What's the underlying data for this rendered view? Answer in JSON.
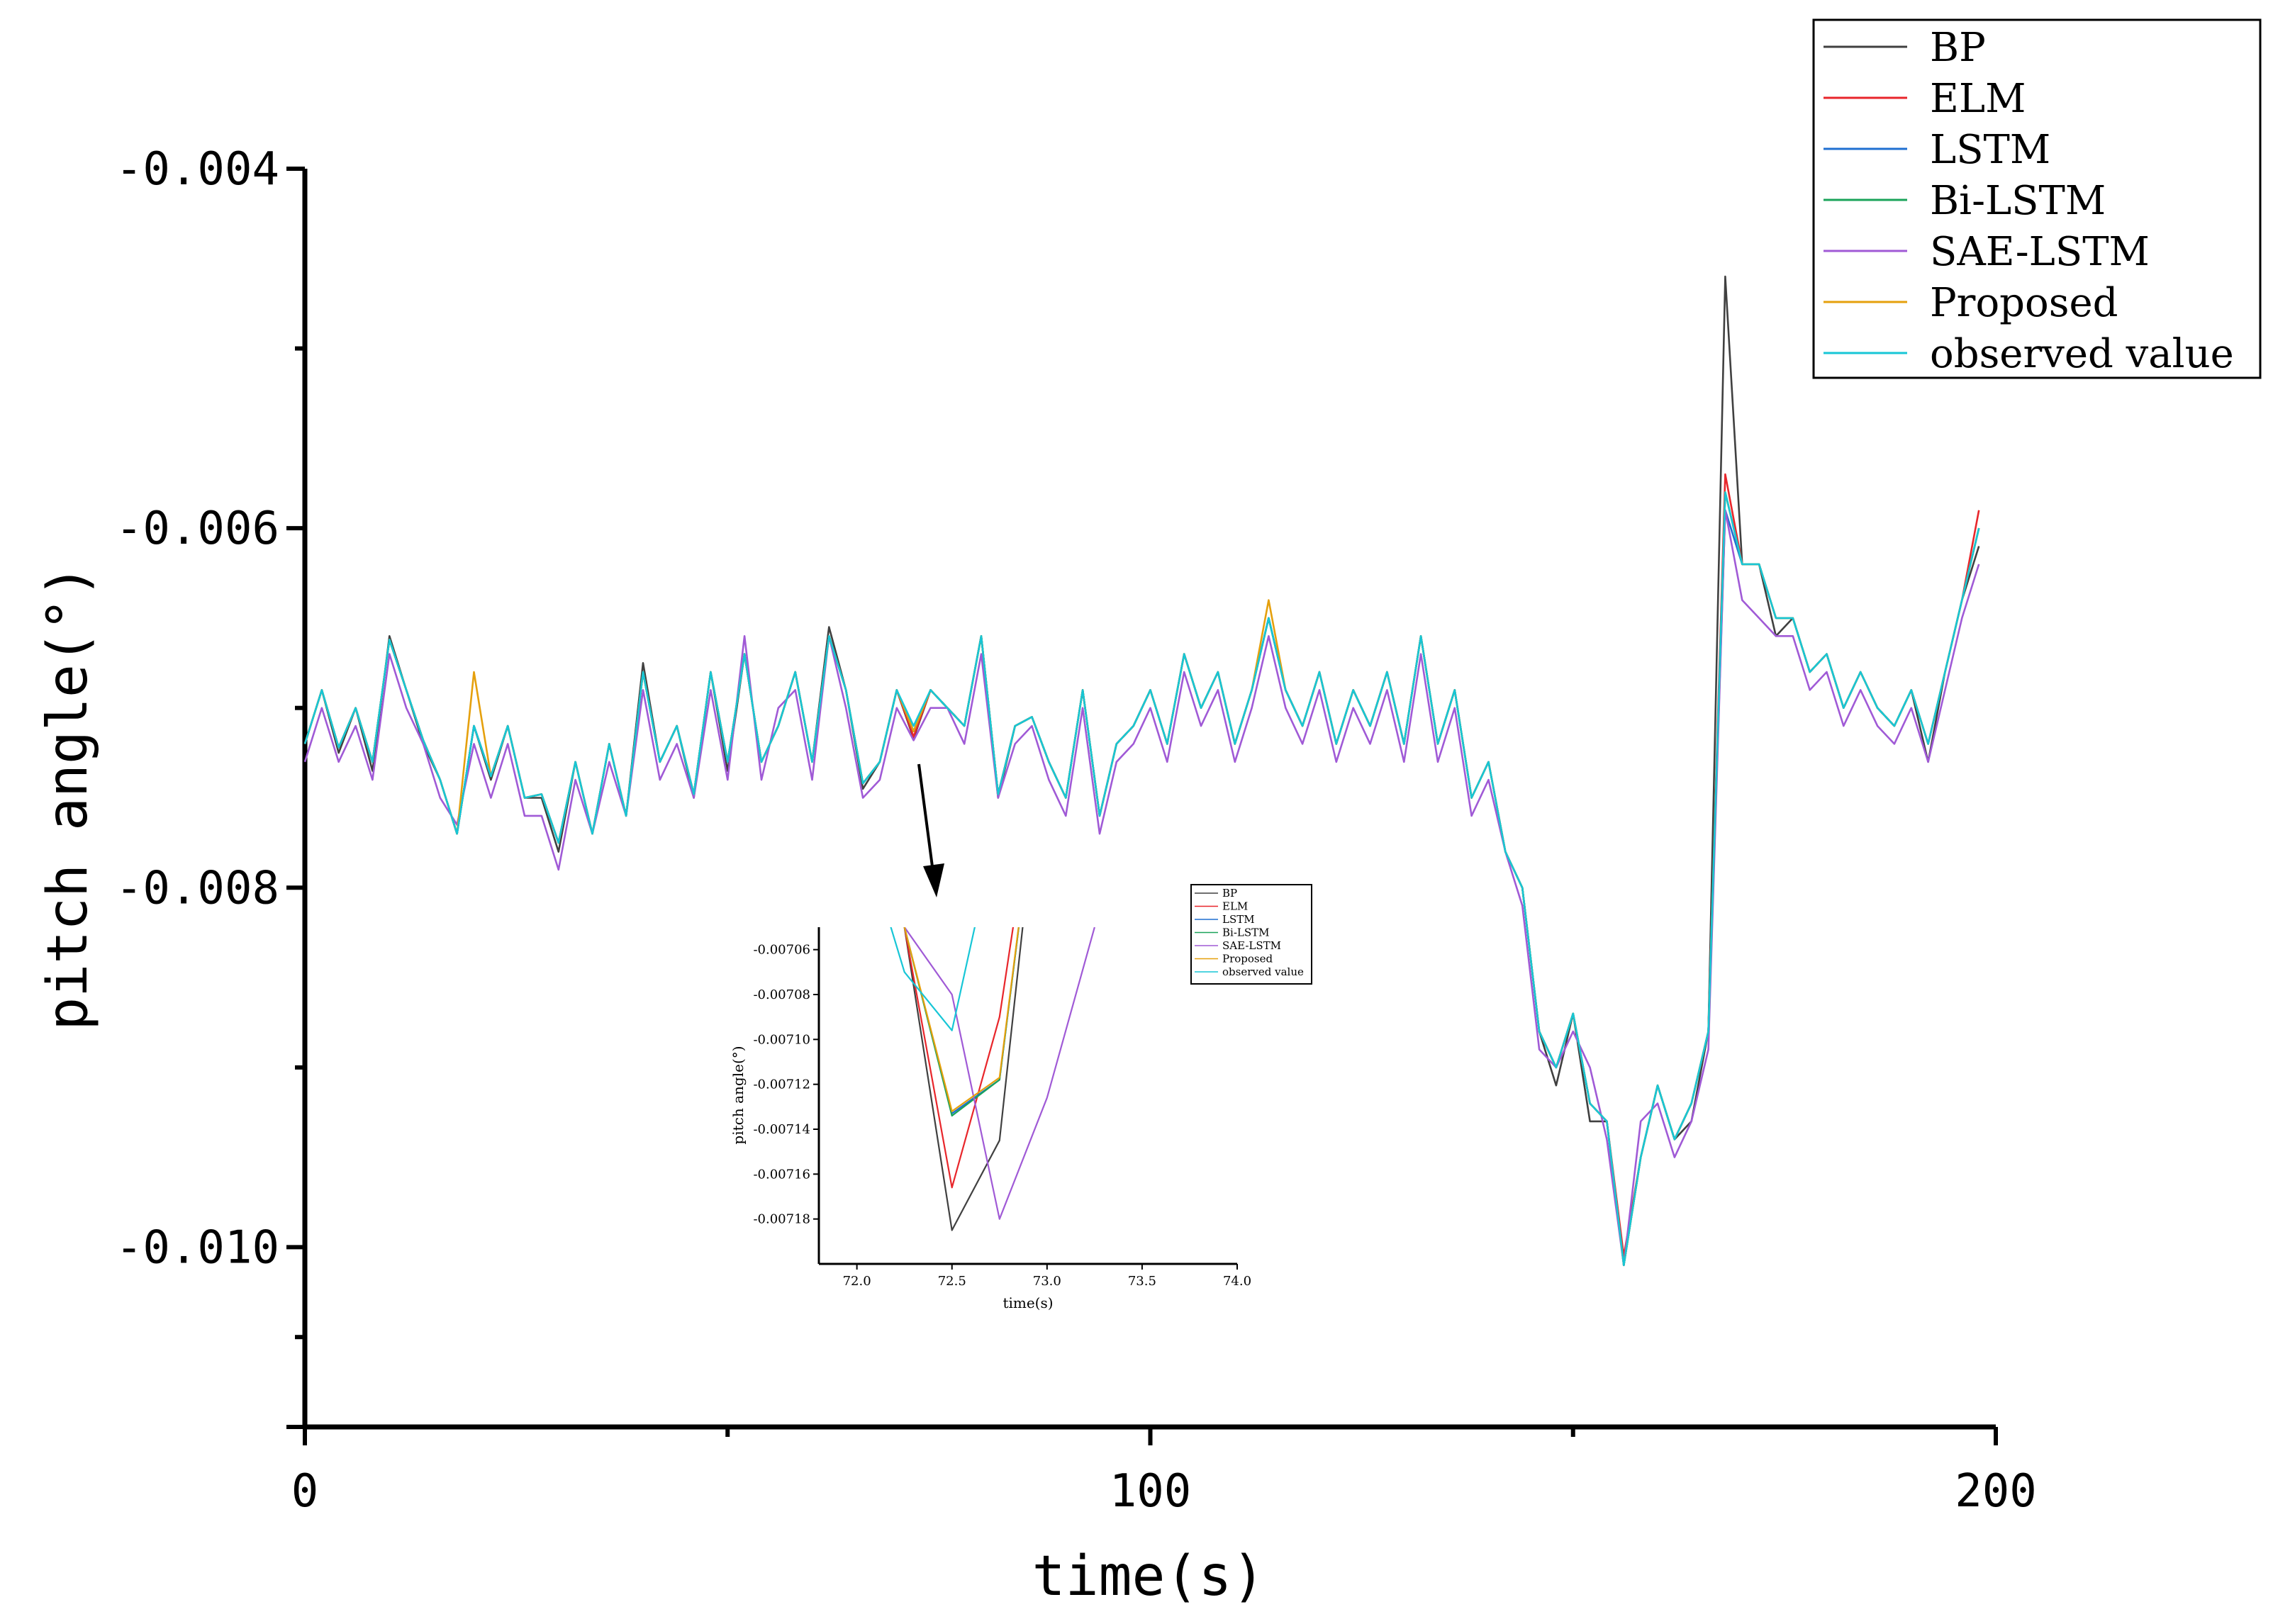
{
  "chart_data": {
    "type": "line",
    "xlabel": "time(s)",
    "ylabel": "pitch angle(°)",
    "xlim": [
      0,
      200
    ],
    "ylim": [
      -0.011,
      -0.004
    ],
    "x_ticks": [
      0,
      100,
      200
    ],
    "x_tick_labels": [
      "0",
      "100",
      "200"
    ],
    "y_ticks": [
      -0.004,
      -0.006,
      -0.008,
      -0.01
    ],
    "y_tick_labels": [
      "-0.004",
      "-0.006",
      "-0.008",
      "-0.010"
    ],
    "legend_position": "top-right",
    "grid": false,
    "x": [
      0,
      2,
      4,
      6,
      8,
      10,
      12,
      14,
      16,
      18,
      20,
      22,
      24,
      26,
      28,
      30,
      32,
      34,
      36,
      38,
      40,
      42,
      44,
      46,
      48,
      50,
      52,
      54,
      56,
      58,
      60,
      62,
      64,
      66,
      68,
      70,
      72,
      74,
      76,
      78,
      80,
      82,
      84,
      86,
      88,
      90,
      92,
      94,
      96,
      98,
      100,
      102,
      104,
      106,
      108,
      110,
      112,
      114,
      116,
      118,
      120,
      122,
      124,
      126,
      128,
      130,
      132,
      134,
      136,
      138,
      140,
      142,
      144,
      146,
      148,
      150,
      152,
      154,
      156,
      158,
      160,
      162,
      164,
      166,
      168,
      170,
      172,
      174,
      176,
      178,
      180,
      182,
      184,
      186,
      188,
      190,
      192,
      194,
      196,
      198
    ],
    "series": [
      {
        "name": "BP",
        "color": "#404040",
        "values": [
          -0.0072,
          -0.0069,
          -0.00725,
          -0.007,
          -0.00735,
          -0.0066,
          -0.0069,
          -0.0072,
          -0.0074,
          -0.0077,
          -0.0071,
          -0.0074,
          -0.0071,
          -0.0075,
          -0.0075,
          -0.0078,
          -0.0073,
          -0.0077,
          -0.0072,
          -0.0076,
          -0.00675,
          -0.0073,
          -0.0071,
          -0.0075,
          -0.0068,
          -0.00735,
          -0.0067,
          -0.0073,
          -0.0071,
          -0.0068,
          -0.0073,
          -0.00655,
          -0.0069,
          -0.00745,
          -0.0073,
          -0.0069,
          -0.00717,
          -0.0069,
          -0.007,
          -0.0071,
          -0.0066,
          -0.0075,
          -0.0071,
          -0.00705,
          -0.0073,
          -0.0075,
          -0.0069,
          -0.0076,
          -0.0072,
          -0.0071,
          -0.0069,
          -0.0072,
          -0.0067,
          -0.007,
          -0.0068,
          -0.0072,
          -0.0069,
          -0.0065,
          -0.0069,
          -0.0071,
          -0.0068,
          -0.0072,
          -0.0069,
          -0.0071,
          -0.0068,
          -0.0072,
          -0.0066,
          -0.0072,
          -0.0069,
          -0.0075,
          -0.0073,
          -0.0078,
          -0.008,
          -0.0088,
          -0.0091,
          -0.0087,
          -0.0093,
          -0.0093,
          -0.0101,
          -0.0095,
          -0.0091,
          -0.0094,
          -0.0093,
          -0.0088,
          -0.0046,
          -0.0062,
          -0.0062,
          -0.0066,
          -0.0065,
          -0.0068,
          -0.0067,
          -0.007,
          -0.0068,
          -0.007,
          -0.0071,
          -0.0069,
          -0.0073,
          -0.0068,
          -0.0064,
          -0.0061
        ]
      },
      {
        "name": "ELM",
        "color": "#e8262b",
        "values": [
          -0.0072,
          -0.0069,
          -0.00722,
          -0.007,
          -0.0073,
          -0.00662,
          -0.0069,
          -0.00718,
          -0.0074,
          -0.0077,
          -0.0071,
          -0.00738,
          -0.0071,
          -0.0075,
          -0.00748,
          -0.00775,
          -0.0073,
          -0.0077,
          -0.0072,
          -0.0076,
          -0.0068,
          -0.0073,
          -0.0071,
          -0.00748,
          -0.0068,
          -0.0073,
          -0.0067,
          -0.0073,
          -0.0071,
          -0.0068,
          -0.0073,
          -0.0066,
          -0.0069,
          -0.00742,
          -0.0073,
          -0.0069,
          -0.00716,
          -0.0069,
          -0.007,
          -0.0071,
          -0.0066,
          -0.00748,
          -0.0071,
          -0.00705,
          -0.0073,
          -0.0075,
          -0.0069,
          -0.0076,
          -0.0072,
          -0.0071,
          -0.0069,
          -0.0072,
          -0.0067,
          -0.007,
          -0.0068,
          -0.0072,
          -0.0069,
          -0.0065,
          -0.0069,
          -0.0071,
          -0.0068,
          -0.0072,
          -0.0069,
          -0.0071,
          -0.0068,
          -0.0072,
          -0.0066,
          -0.0072,
          -0.0069,
          -0.0075,
          -0.0073,
          -0.0078,
          -0.008,
          -0.0088,
          -0.009,
          -0.0087,
          -0.0092,
          -0.0093,
          -0.01005,
          -0.0095,
          -0.0091,
          -0.0094,
          -0.0092,
          -0.0088,
          -0.0057,
          -0.0062,
          -0.0062,
          -0.0065,
          -0.0065,
          -0.0068,
          -0.0067,
          -0.007,
          -0.0068,
          -0.007,
          -0.0071,
          -0.0069,
          -0.0072,
          -0.0068,
          -0.0064,
          -0.0059
        ]
      },
      {
        "name": "LSTM",
        "color": "#1f6fd1",
        "values": [
          -0.0072,
          -0.0069,
          -0.00722,
          -0.007,
          -0.0073,
          -0.00662,
          -0.0069,
          -0.00718,
          -0.0074,
          -0.0077,
          -0.0071,
          -0.00738,
          -0.0071,
          -0.0075,
          -0.00748,
          -0.00775,
          -0.0073,
          -0.0077,
          -0.0072,
          -0.0076,
          -0.0068,
          -0.0073,
          -0.0071,
          -0.00748,
          -0.0068,
          -0.0073,
          -0.0067,
          -0.0073,
          -0.0071,
          -0.0068,
          -0.0073,
          -0.0066,
          -0.0069,
          -0.00742,
          -0.0073,
          -0.0069,
          -0.00713,
          -0.0069,
          -0.007,
          -0.0071,
          -0.0066,
          -0.00748,
          -0.0071,
          -0.00705,
          -0.0073,
          -0.0075,
          -0.0069,
          -0.0076,
          -0.0072,
          -0.0071,
          -0.0069,
          -0.0072,
          -0.0067,
          -0.007,
          -0.0068,
          -0.0072,
          -0.0069,
          -0.0065,
          -0.0069,
          -0.0071,
          -0.0068,
          -0.0072,
          -0.0069,
          -0.0071,
          -0.0068,
          -0.0072,
          -0.0066,
          -0.0072,
          -0.0069,
          -0.0075,
          -0.0073,
          -0.0078,
          -0.008,
          -0.0088,
          -0.009,
          -0.0087,
          -0.0092,
          -0.0093,
          -0.0101,
          -0.0095,
          -0.0091,
          -0.0094,
          -0.0092,
          -0.0088,
          -0.0059,
          -0.0062,
          -0.0062,
          -0.0065,
          -0.0065,
          -0.0068,
          -0.0067,
          -0.007,
          -0.0068,
          -0.007,
          -0.0071,
          -0.0069,
          -0.0072,
          -0.0068,
          -0.0064,
          -0.006
        ]
      },
      {
        "name": "Bi-LSTM",
        "color": "#1aa35a",
        "values": [
          -0.0072,
          -0.0069,
          -0.00722,
          -0.007,
          -0.0073,
          -0.00662,
          -0.0069,
          -0.00718,
          -0.0074,
          -0.0077,
          -0.0071,
          -0.00738,
          -0.0071,
          -0.0075,
          -0.00748,
          -0.00775,
          -0.0073,
          -0.0077,
          -0.0072,
          -0.0076,
          -0.0068,
          -0.0073,
          -0.0071,
          -0.00748,
          -0.0068,
          -0.0073,
          -0.0067,
          -0.0073,
          -0.0071,
          -0.0068,
          -0.0073,
          -0.0066,
          -0.0069,
          -0.00742,
          -0.0073,
          -0.0069,
          -0.00713,
          -0.0069,
          -0.007,
          -0.0071,
          -0.0066,
          -0.00748,
          -0.0071,
          -0.00705,
          -0.0073,
          -0.0075,
          -0.0069,
          -0.0076,
          -0.0072,
          -0.0071,
          -0.0069,
          -0.0072,
          -0.0067,
          -0.007,
          -0.0068,
          -0.0072,
          -0.0069,
          -0.0065,
          -0.0069,
          -0.0071,
          -0.0068,
          -0.0072,
          -0.0069,
          -0.0071,
          -0.0068,
          -0.0072,
          -0.0066,
          -0.0072,
          -0.0069,
          -0.0075,
          -0.0073,
          -0.0078,
          -0.008,
          -0.0088,
          -0.009,
          -0.0087,
          -0.0092,
          -0.0093,
          -0.0101,
          -0.0095,
          -0.0091,
          -0.0094,
          -0.0092,
          -0.0088,
          -0.0058,
          -0.0062,
          -0.0062,
          -0.0065,
          -0.0065,
          -0.0068,
          -0.0067,
          -0.007,
          -0.0068,
          -0.007,
          -0.0071,
          -0.0069,
          -0.0072,
          -0.0068,
          -0.0064,
          -0.006
        ]
      },
      {
        "name": "SAE-LSTM",
        "color": "#a05ad6",
        "values": [
          -0.0073,
          -0.007,
          -0.0073,
          -0.0071,
          -0.0074,
          -0.0067,
          -0.007,
          -0.0072,
          -0.0075,
          -0.00765,
          -0.0072,
          -0.0075,
          -0.0072,
          -0.0076,
          -0.0076,
          -0.0079,
          -0.0074,
          -0.0077,
          -0.0073,
          -0.0076,
          -0.0069,
          -0.0074,
          -0.0072,
          -0.0075,
          -0.0069,
          -0.0074,
          -0.0066,
          -0.0074,
          -0.007,
          -0.0069,
          -0.0074,
          -0.0066,
          -0.007,
          -0.0075,
          -0.0074,
          -0.007,
          -0.00718,
          -0.007,
          -0.007,
          -0.0072,
          -0.0067,
          -0.0075,
          -0.0072,
          -0.0071,
          -0.0074,
          -0.0076,
          -0.007,
          -0.0077,
          -0.0073,
          -0.0072,
          -0.007,
          -0.0073,
          -0.0068,
          -0.0071,
          -0.0069,
          -0.0073,
          -0.007,
          -0.0066,
          -0.007,
          -0.0072,
          -0.0069,
          -0.0073,
          -0.007,
          -0.0072,
          -0.0069,
          -0.0073,
          -0.0067,
          -0.0073,
          -0.007,
          -0.0076,
          -0.0074,
          -0.0078,
          -0.0081,
          -0.0089,
          -0.009,
          -0.0088,
          -0.009,
          -0.0094,
          -0.0101,
          -0.0093,
          -0.0092,
          -0.0095,
          -0.0093,
          -0.0089,
          -0.0059,
          -0.0064,
          -0.0065,
          -0.0066,
          -0.0066,
          -0.0069,
          -0.0068,
          -0.0071,
          -0.0069,
          -0.0071,
          -0.0072,
          -0.007,
          -0.0073,
          -0.0069,
          -0.0065,
          -0.0062
        ]
      },
      {
        "name": "Proposed",
        "color": "#e5a00d",
        "values": [
          -0.0072,
          -0.0069,
          -0.00722,
          -0.007,
          -0.0073,
          -0.00662,
          -0.0069,
          -0.00718,
          -0.0074,
          -0.0077,
          -0.0068,
          -0.00738,
          -0.0071,
          -0.0075,
          -0.00748,
          -0.00775,
          -0.0073,
          -0.0077,
          -0.0072,
          -0.0076,
          -0.0068,
          -0.0073,
          -0.0071,
          -0.00748,
          -0.0068,
          -0.0073,
          -0.0067,
          -0.0073,
          -0.0071,
          -0.0068,
          -0.0073,
          -0.0066,
          -0.0069,
          -0.00742,
          -0.0073,
          -0.0069,
          -0.00713,
          -0.0069,
          -0.007,
          -0.0071,
          -0.0066,
          -0.00748,
          -0.0071,
          -0.00705,
          -0.0073,
          -0.0075,
          -0.0069,
          -0.0076,
          -0.0072,
          -0.0071,
          -0.0069,
          -0.0072,
          -0.0067,
          -0.007,
          -0.0068,
          -0.0072,
          -0.0069,
          -0.0064,
          -0.0069,
          -0.0071,
          -0.0068,
          -0.0072,
          -0.0069,
          -0.0071,
          -0.0068,
          -0.0072,
          -0.0066,
          -0.0072,
          -0.0069,
          -0.0075,
          -0.0073,
          -0.0078,
          -0.008,
          -0.0088,
          -0.009,
          -0.0087,
          -0.0092,
          -0.0093,
          -0.0101,
          -0.0095,
          -0.0091,
          -0.0094,
          -0.0092,
          -0.0088,
          -0.0058,
          -0.0062,
          -0.0062,
          -0.0065,
          -0.0065,
          -0.0068,
          -0.0067,
          -0.007,
          -0.0068,
          -0.007,
          -0.0071,
          -0.0069,
          -0.0072,
          -0.0068,
          -0.0064,
          -0.006
        ]
      },
      {
        "name": "observed value",
        "color": "#17c6d6",
        "values": [
          -0.0072,
          -0.0069,
          -0.00722,
          -0.007,
          -0.0073,
          -0.00662,
          -0.0069,
          -0.00718,
          -0.0074,
          -0.0077,
          -0.0071,
          -0.00738,
          -0.0071,
          -0.0075,
          -0.00748,
          -0.00775,
          -0.0073,
          -0.0077,
          -0.0072,
          -0.0076,
          -0.0068,
          -0.0073,
          -0.0071,
          -0.00748,
          -0.0068,
          -0.0073,
          -0.0067,
          -0.0073,
          -0.0071,
          -0.0068,
          -0.0073,
          -0.0066,
          -0.0069,
          -0.00742,
          -0.0073,
          -0.0069,
          -0.0071,
          -0.0069,
          -0.007,
          -0.0071,
          -0.0066,
          -0.00748,
          -0.0071,
          -0.00705,
          -0.0073,
          -0.0075,
          -0.0069,
          -0.0076,
          -0.0072,
          -0.0071,
          -0.0069,
          -0.0072,
          -0.0067,
          -0.007,
          -0.0068,
          -0.0072,
          -0.0069,
          -0.0065,
          -0.0069,
          -0.0071,
          -0.0068,
          -0.0072,
          -0.0069,
          -0.0071,
          -0.0068,
          -0.0072,
          -0.0066,
          -0.0072,
          -0.0069,
          -0.0075,
          -0.0073,
          -0.0078,
          -0.008,
          -0.0088,
          -0.009,
          -0.0087,
          -0.0092,
          -0.0093,
          -0.0101,
          -0.0095,
          -0.0091,
          -0.0094,
          -0.0092,
          -0.0088,
          -0.0058,
          -0.0062,
          -0.0062,
          -0.0065,
          -0.0065,
          -0.0068,
          -0.0067,
          -0.007,
          -0.0068,
          -0.007,
          -0.0071,
          -0.0069,
          -0.0072,
          -0.0068,
          -0.0064,
          -0.006
        ]
      }
    ],
    "inset": {
      "type": "line",
      "xlabel": "time(s)",
      "ylabel": "pitch angle(°)",
      "xlim": [
        71.8,
        74.0
      ],
      "ylim": [
        -0.0072,
        -0.00705
      ],
      "x_ticks": [
        72.0,
        72.5,
        73.0,
        73.5,
        74.0
      ],
      "x_tick_labels": [
        "72.0",
        "72.5",
        "73.0",
        "73.5",
        "74.0"
      ],
      "y_ticks": [
        -0.00706,
        -0.00708,
        -0.0071,
        -0.00712,
        -0.00714,
        -0.00716,
        -0.00718
      ],
      "y_tick_labels": [
        "-0.00706",
        "-0.00708",
        "-0.00710",
        "-0.00712",
        "-0.00714",
        "-0.00716",
        "-0.00718"
      ],
      "legend_position": "top-right (outside)",
      "series": [
        {
          "name": "BP",
          "color": "#404040",
          "x": [
            72.0,
            72.25,
            72.5,
            72.75,
            73.0
          ],
          "values": [
            -0.00695,
            -0.00705,
            -0.007185,
            -0.007145,
            -0.00695
          ]
        },
        {
          "name": "ELM",
          "color": "#e8262b",
          "x": [
            72.0,
            72.25,
            72.5,
            72.75,
            73.0
          ],
          "values": [
            -0.00695,
            -0.00705,
            -0.007166,
            -0.00709,
            -0.00695
          ]
        },
        {
          "name": "LSTM",
          "color": "#1f6fd1",
          "x": [
            72.0,
            72.25,
            72.5,
            72.75,
            73.0
          ],
          "values": [
            -0.00695,
            -0.00705,
            -0.007133,
            -0.007118,
            -0.00695
          ]
        },
        {
          "name": "Bi-LSTM",
          "color": "#1aa35a",
          "x": [
            72.0,
            72.25,
            72.5,
            72.75,
            73.0
          ],
          "values": [
            -0.00695,
            -0.00705,
            -0.007134,
            -0.007118,
            -0.00695
          ]
        },
        {
          "name": "SAE-LSTM",
          "color": "#a05ad6",
          "x": [
            72.0,
            72.25,
            72.5,
            72.75,
            73.0,
            73.25
          ],
          "values": [
            -0.00695,
            -0.00705,
            -0.00708,
            -0.00718,
            -0.007126,
            -0.00705
          ]
        },
        {
          "name": "Proposed",
          "color": "#e5a00d",
          "x": [
            72.0,
            72.25,
            72.5,
            72.75,
            73.0
          ],
          "values": [
            -0.00695,
            -0.00705,
            -0.007132,
            -0.007117,
            -0.00695
          ]
        },
        {
          "name": "observed value",
          "color": "#17c6d6",
          "x": [
            72.0,
            72.25,
            72.5,
            72.75
          ],
          "values": [
            -0.007,
            -0.00707,
            -0.007096,
            -0.007
          ]
        }
      ]
    }
  }
}
